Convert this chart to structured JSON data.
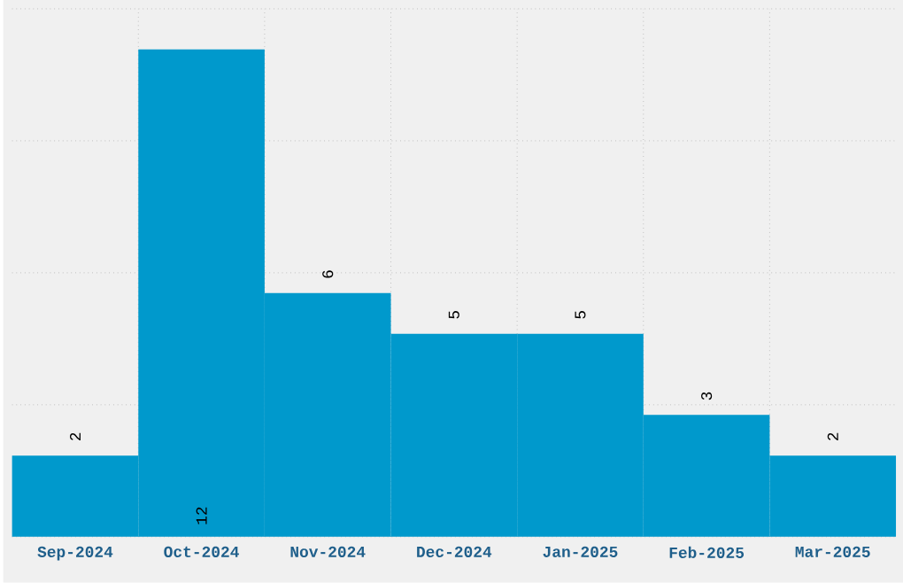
{
  "chart_data": {
    "type": "bar",
    "categories": [
      "Sep-2024",
      "Oct-2024",
      "Nov-2024",
      "Dec-2024",
      "Jan-2025",
      "Feb-2025",
      "Mar-2025"
    ],
    "values": [
      2,
      12,
      6,
      5,
      5,
      3,
      2
    ],
    "color": "#0099cc",
    "ylim": [
      0,
      13
    ],
    "yticks": [
      {
        "value": 0,
        "label": null
      },
      {
        "value": 3.25,
        "label": null
      },
      {
        "value": 6.5,
        "label": null
      },
      {
        "value": 9.75,
        "label": null
      },
      {
        "value": 13,
        "label": null
      }
    ],
    "tick_labels": "x",
    "grid": true,
    "data_labels": true
  }
}
